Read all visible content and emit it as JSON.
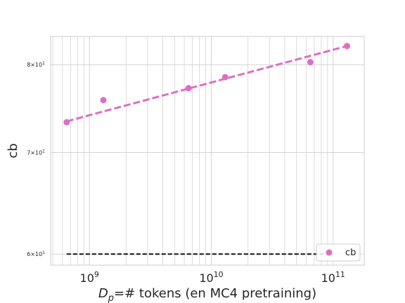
{
  "chart_data": {
    "type": "scatter",
    "x_scale": "log",
    "y_scale": "log",
    "xlabel_main": "D",
    "xlabel_sub": "p",
    "xlabel_rest": "=# tokens (en MC4 pretraining)",
    "ylabel": "cb",
    "xlim": [
      480000000,
      180000000000
    ],
    "ylim": [
      59,
      83.5
    ],
    "x_ticks": [
      {
        "value": 1000000000,
        "base": "10",
        "exp": "9"
      },
      {
        "value": 10000000000,
        "base": "10",
        "exp": "10"
      },
      {
        "value": 100000000000,
        "base": "10",
        "exp": "11"
      }
    ],
    "y_ticks": [
      {
        "value": 60,
        "label": "6×10",
        "exp": "1"
      },
      {
        "value": 70,
        "label": "7×10",
        "exp": "1"
      },
      {
        "value": 80,
        "label": "8×10",
        "exp": "1"
      }
    ],
    "grid": true,
    "series": [
      {
        "name": "cb",
        "color": "#dd6fc2",
        "x": [
          650000000,
          1300000000,
          6500000000,
          13000000000,
          65000000000,
          130000000000
        ],
        "y": [
          73.3,
          75.8,
          77.2,
          78.5,
          80.3,
          82.3
        ]
      }
    ],
    "trend_line": {
      "color": "#dd6fc2",
      "style": "dashed",
      "x": [
        650000000,
        130000000000
      ],
      "y": [
        73.4,
        82.3
      ]
    },
    "baseline": {
      "color": "#111111",
      "style": "dashed",
      "y": 60,
      "x": [
        650000000,
        90000000000
      ]
    },
    "legend": {
      "position": "lower-right",
      "entries": [
        "cb"
      ]
    }
  }
}
